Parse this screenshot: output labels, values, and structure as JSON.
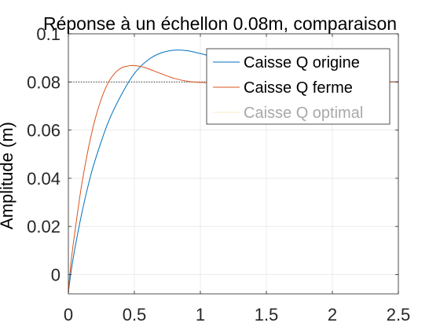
{
  "chart_data": {
    "type": "line",
    "title": "Réponse à un échellon 0.08m, comparaison",
    "xlabel": "",
    "ylabel": "Amplitude (m)",
    "xlim": [
      0,
      2.5
    ],
    "ylim": [
      -0.008,
      0.1
    ],
    "xticks": [
      0,
      0.5,
      1,
      1.5,
      2,
      2.5
    ],
    "xtick_labels": [
      "0",
      "0.5",
      "1",
      "1.5",
      "2",
      "2.5"
    ],
    "yticks": [
      0,
      0.02,
      0.04,
      0.06,
      0.08,
      0.1
    ],
    "ytick_labels": [
      "0",
      "0.02",
      "0.04",
      "0.06",
      "0.08",
      "0.1"
    ],
    "grid": true,
    "legend_position": "top-right",
    "reference_line": {
      "y": 0.08,
      "style": "dotted",
      "color": "#000000"
    },
    "series": [
      {
        "name": "Caisse Q origine",
        "color": "#0072BD",
        "x": [
          0,
          0.02,
          0.05,
          0.1,
          0.15,
          0.2,
          0.3,
          0.4,
          0.5,
          0.6,
          0.7,
          0.8,
          0.9,
          1.0,
          1.1,
          1.2,
          1.3,
          1.4,
          1.5,
          1.6,
          1.8,
          2.0,
          2.2,
          2.5
        ],
        "y": [
          -0.0075,
          0.001,
          0.011,
          0.025,
          0.037,
          0.047,
          0.063,
          0.0745,
          0.0835,
          0.089,
          0.092,
          0.0932,
          0.093,
          0.0918,
          0.0903,
          0.0886,
          0.087,
          0.0855,
          0.0843,
          0.0832,
          0.0818,
          0.0808,
          0.0803,
          0.08
        ]
      },
      {
        "name": "Caisse Q ferme",
        "color": "#D95319",
        "x": [
          0,
          0.02,
          0.05,
          0.1,
          0.15,
          0.2,
          0.25,
          0.3,
          0.35,
          0.4,
          0.45,
          0.5,
          0.55,
          0.6,
          0.7,
          0.8,
          0.9,
          1.0,
          1.2,
          1.5,
          2.0,
          2.5
        ],
        "y": [
          -0.0075,
          0.005,
          0.018,
          0.037,
          0.052,
          0.064,
          0.073,
          0.0795,
          0.0835,
          0.0858,
          0.0866,
          0.0868,
          0.0864,
          0.0856,
          0.0835,
          0.0815,
          0.0803,
          0.0798,
          0.0798,
          0.08,
          0.08,
          0.08
        ]
      },
      {
        "name": "Caisse Q optimal",
        "color": "#EDB120",
        "x": [],
        "y": []
      }
    ]
  }
}
